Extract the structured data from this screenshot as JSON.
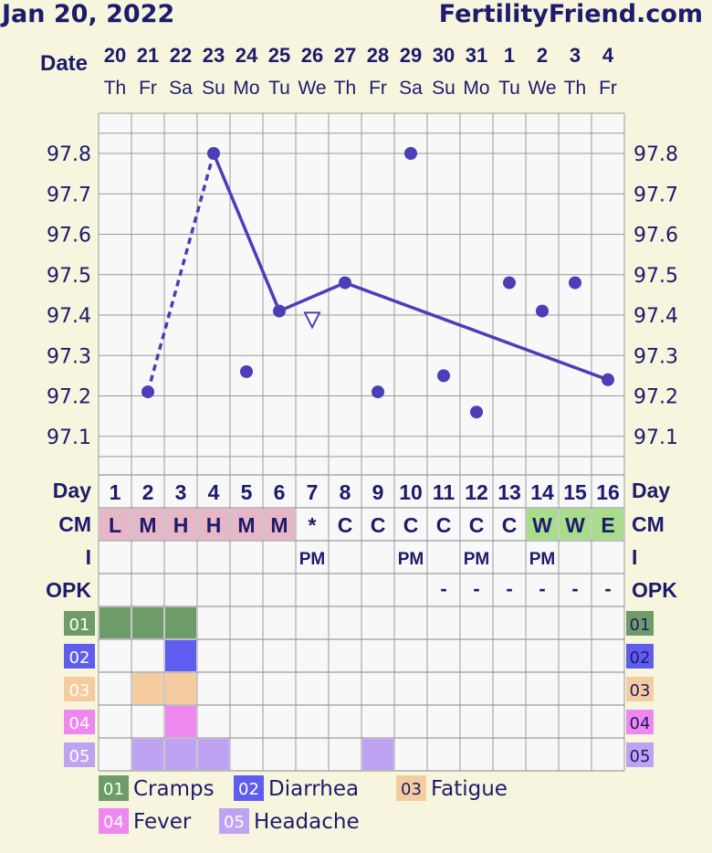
{
  "header": {
    "date": "Jan 20, 2022",
    "site": "FertilityFriend.com"
  },
  "labels": {
    "date": "Date",
    "day": "Day",
    "cm": "CM",
    "i": "I",
    "opk": "OPK"
  },
  "colors": {
    "background": "#f7f5dd",
    "cell": "#f8f8f8",
    "grid": "#9a9a9a",
    "line": "#4b3eb8",
    "text_dark": "#1d1b6b",
    "cm_menses": "#e6b7c6",
    "cm_fertile": "#a8dd8c",
    "sym_01": "#6e9c68",
    "sym_02": "#5f5df0",
    "sym_03": "#f4cca0",
    "sym_04": "#ee88ee",
    "sym_05": "#bda3f2"
  },
  "chart_data": {
    "type": "line",
    "title": "",
    "dates": [
      "20",
      "21",
      "22",
      "23",
      "24",
      "25",
      "26",
      "27",
      "28",
      "29",
      "30",
      "31",
      "1",
      "2",
      "3",
      "4"
    ],
    "weekdays": [
      "Th",
      "Fr",
      "Sa",
      "Su",
      "Mo",
      "Tu",
      "We",
      "Th",
      "Fr",
      "Sa",
      "Su",
      "Mo",
      "Tu",
      "We",
      "Th",
      "Fr"
    ],
    "cycle_days": [
      "1",
      "2",
      "3",
      "4",
      "5",
      "6",
      "7",
      "8",
      "9",
      "10",
      "11",
      "12",
      "13",
      "14",
      "15",
      "16"
    ],
    "y_ticks": [
      "97.8",
      "97.7",
      "97.6",
      "97.5",
      "97.4",
      "97.3",
      "97.2",
      "97.1"
    ],
    "ylim": [
      97.0,
      97.9
    ],
    "temps": [
      null,
      97.21,
      null,
      97.8,
      97.26,
      97.41,
      97.39,
      97.48,
      97.21,
      97.8,
      97.25,
      97.16,
      97.48,
      97.41,
      97.48,
      97.24
    ],
    "segments": [
      {
        "from": 1,
        "to": 3,
        "style": "dashed"
      },
      {
        "from": 3,
        "to": 5,
        "style": "solid"
      },
      {
        "from": 5,
        "to": 7,
        "style": "solid"
      },
      {
        "from": 7,
        "to": 15,
        "style": "solid"
      }
    ],
    "open_markers": [
      6
    ],
    "cm": [
      "L",
      "M",
      "H",
      "H",
      "M",
      "M",
      "*",
      "C",
      "C",
      "C",
      "C",
      "C",
      "C",
      "W",
      "W",
      "E"
    ],
    "cm_kind": [
      "menses",
      "menses",
      "menses",
      "menses",
      "menses",
      "menses",
      "none",
      "none",
      "none",
      "none",
      "none",
      "none",
      "none",
      "fertile",
      "fertile",
      "fertile"
    ],
    "intercourse": [
      "",
      "",
      "",
      "",
      "",
      "",
      "PM",
      "",
      "",
      "PM",
      "",
      "PM",
      "",
      "PM",
      "",
      ""
    ],
    "opk": [
      "",
      "",
      "",
      "",
      "",
      "",
      "",
      "",
      "",
      "",
      "-",
      "-",
      "-",
      "-",
      "-",
      "-"
    ],
    "symptoms": [
      {
        "code": "01",
        "name": "Cramps",
        "days": [
          1,
          2,
          3
        ]
      },
      {
        "code": "02",
        "name": "Diarrhea",
        "days": [
          3
        ]
      },
      {
        "code": "03",
        "name": "Fatigue",
        "days": [
          2,
          3
        ]
      },
      {
        "code": "04",
        "name": "Fever",
        "days": [
          3
        ]
      },
      {
        "code": "05",
        "name": "Headache",
        "days": [
          2,
          3,
          4,
          9
        ]
      }
    ]
  }
}
